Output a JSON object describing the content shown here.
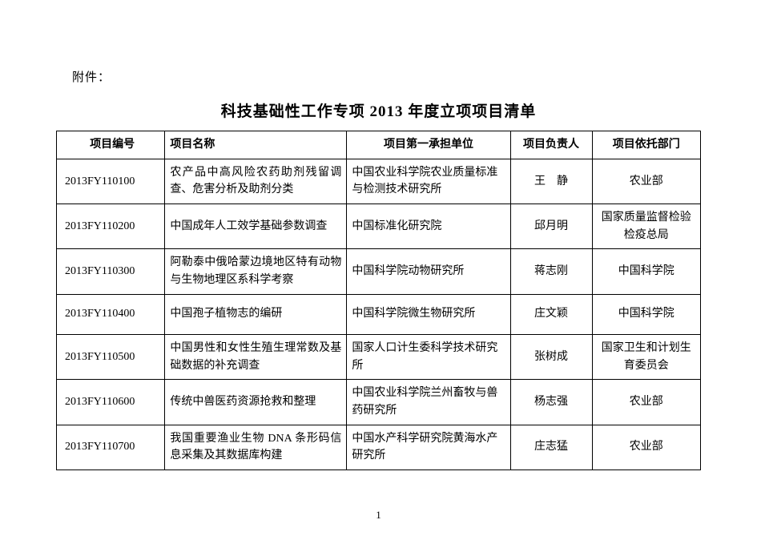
{
  "attachment_label": "附件：",
  "title": "科技基础性工作专项 2013 年度立项项目清单",
  "page_number": "1",
  "columns": {
    "id": "项目编号",
    "name": "项目名称",
    "unit": "项目第一承担单位",
    "person": "项目负责人",
    "dept": "项目依托部门"
  },
  "rows": [
    {
      "id": "2013FY110100",
      "name": "农产品中高风险农药助剂残留调查、危害分析及助剂分类",
      "unit": "中国农业科学院农业质量标准与检测技术研究所",
      "person": "王　静",
      "dept": "农业部"
    },
    {
      "id": "2013FY110200",
      "name": "中国成年人工效学基础参数调查",
      "unit": "中国标准化研究院",
      "person": "邱月明",
      "dept": "国家质量监督检验检疫总局"
    },
    {
      "id": "2013FY110300",
      "name": "阿勒泰中俄哈蒙边境地区特有动物与生物地理区系科学考察",
      "unit": "中国科学院动物研究所",
      "person": "蒋志刚",
      "dept": "中国科学院"
    },
    {
      "id": "2013FY110400",
      "name": "中国孢子植物志的编研",
      "unit": "中国科学院微生物研究所",
      "person": "庄文颖",
      "dept": "中国科学院"
    },
    {
      "id": "2013FY110500",
      "name": "中国男性和女性生殖生理常数及基础数据的补充调查",
      "unit": "国家人口计生委科学技术研究所",
      "person": "张树成",
      "dept": "国家卫生和计划生育委员会"
    },
    {
      "id": "2013FY110600",
      "name": "传统中兽医药资源抢救和整理",
      "unit": "中国农业科学院兰州畜牧与兽药研究所",
      "person": "杨志强",
      "dept": "农业部"
    },
    {
      "id": "2013FY110700",
      "name": "我国重要渔业生物 DNA 条形码信息采集及其数据库构建",
      "unit": "中国水产科学研究院黄海水产研究所",
      "person": "庄志猛",
      "dept": "农业部"
    }
  ]
}
